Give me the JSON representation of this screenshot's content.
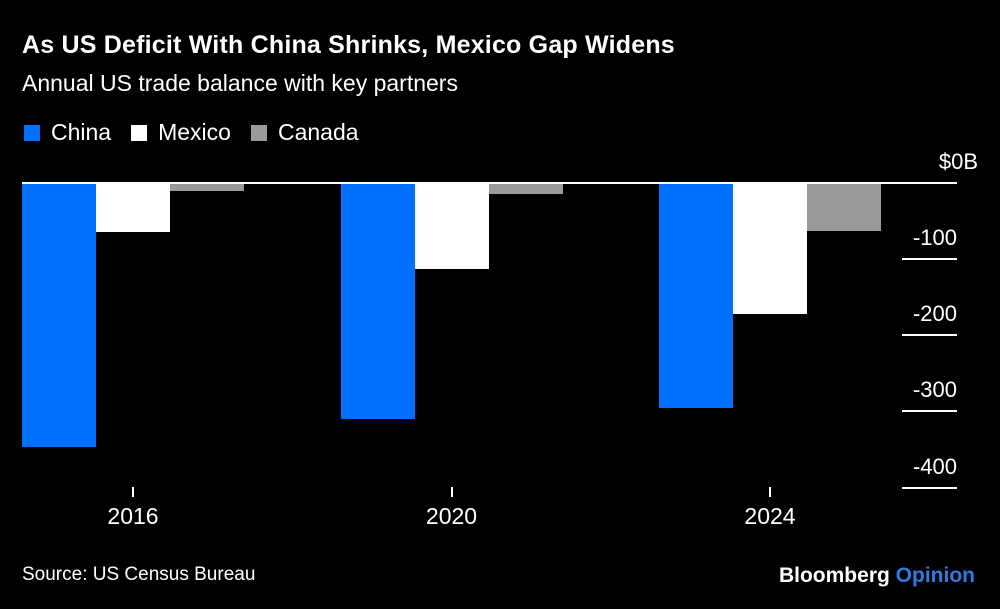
{
  "header": {
    "title": "As US Deficit With China Shrinks, Mexico Gap Widens",
    "subtitle": "Annual US trade balance with key partners"
  },
  "chart_data": {
    "type": "bar",
    "title": "As US Deficit With China Shrinks, Mexico Gap Widens",
    "subtitle": "Annual US trade balance with key partners",
    "unit": "USD billions",
    "categories": [
      "2016",
      "2020",
      "2024"
    ],
    "series": [
      {
        "name": "China",
        "color": "#0071ff",
        "values": [
          -347,
          -310,
          -295
        ]
      },
      {
        "name": "Mexico",
        "color": "#ffffff",
        "values": [
          -64,
          -113,
          -172
        ]
      },
      {
        "name": "Canada",
        "color": "#999999",
        "values": [
          -11,
          -15,
          -63
        ]
      }
    ],
    "y_ticks": [
      {
        "label": "$0B",
        "value": 0
      },
      {
        "label": "-100",
        "value": -100
      },
      {
        "label": "-200",
        "value": -200
      },
      {
        "label": "-300",
        "value": -300
      },
      {
        "label": "-400",
        "value": -400
      }
    ],
    "ylim": [
      -430,
      0
    ],
    "legend_position": "top-left",
    "grid": "right-edge tick segments only, full-width zero line"
  },
  "footer": {
    "source": "Source: US Census Bureau",
    "brand": "Bloomberg",
    "brand_suffix": "Opinion",
    "brand_suffix_color": "#2f7ce0"
  },
  "colors": {
    "background": "#000000",
    "text": "#ffffff",
    "axis": "#ffffff",
    "china_blue": "#0071ff",
    "mexico_white": "#ffffff",
    "canada_gray": "#999999",
    "opinion_blue": "#2f7ce0"
  }
}
